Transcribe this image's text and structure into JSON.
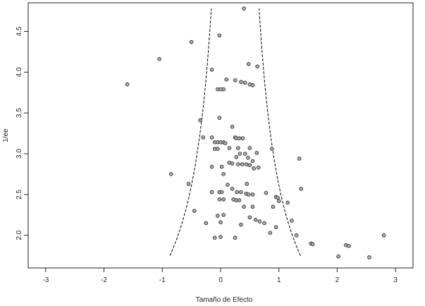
{
  "chart_data": {
    "type": "scatter",
    "xlabel": "Tamaño de Efecto",
    "ylabel": "1/ee",
    "xlim": [
      -3.3,
      3.3
    ],
    "ylim": [
      1.6,
      4.85
    ],
    "x_ticks": [
      "-3",
      "-2",
      "-1",
      "0",
      "1",
      "2",
      "3"
    ],
    "y_ticks": [
      "2.0",
      "2.5",
      "3.0",
      "3.5",
      "4.0",
      "4.5"
    ],
    "grid": false,
    "point_color": "#aaaaaa",
    "funnel_center": 0.25,
    "funnel_ymin": 1.75,
    "funnel_ymax": 4.78,
    "points": [
      [
        0.4,
        4.78
      ],
      [
        -0.02,
        4.45
      ],
      [
        -0.5,
        4.37
      ],
      [
        -1.05,
        4.16
      ],
      [
        -1.6,
        3.85
      ],
      [
        0.48,
        4.1
      ],
      [
        0.63,
        4.07
      ],
      [
        -0.15,
        4.03
      ],
      [
        0.1,
        3.91
      ],
      [
        0.25,
        3.9
      ],
      [
        0.35,
        3.88
      ],
      [
        0.42,
        3.87
      ],
      [
        0.5,
        3.85
      ],
      [
        0.55,
        3.84
      ],
      [
        -0.05,
        3.79
      ],
      [
        0.05,
        3.79
      ],
      [
        0.0,
        3.79
      ],
      [
        -0.02,
        3.44
      ],
      [
        -0.35,
        3.41
      ],
      [
        0.2,
        3.33
      ],
      [
        -0.3,
        3.2
      ],
      [
        -0.15,
        3.2
      ],
      [
        0.25,
        3.2
      ],
      [
        0.32,
        3.19
      ],
      [
        0.38,
        3.19
      ],
      [
        0.27,
        3.19
      ],
      [
        -0.1,
        3.14
      ],
      [
        -0.05,
        3.14
      ],
      [
        0.0,
        3.14
      ],
      [
        0.05,
        3.14
      ],
      [
        0.08,
        3.13
      ],
      [
        -0.1,
        3.06
      ],
      [
        -0.05,
        3.06
      ],
      [
        0.15,
        3.07
      ],
      [
        0.3,
        3.07
      ],
      [
        0.5,
        3.07
      ],
      [
        0.88,
        3.06
      ],
      [
        0.33,
        3.0
      ],
      [
        0.62,
        3.01
      ],
      [
        0.42,
        3.0
      ],
      [
        0.27,
        2.96
      ],
      [
        0.47,
        2.95
      ],
      [
        0.55,
        2.91
      ],
      [
        1.35,
        2.94
      ],
      [
        0.15,
        2.89
      ],
      [
        0.2,
        2.88
      ],
      [
        0.3,
        2.87
      ],
      [
        0.37,
        2.87
      ],
      [
        0.44,
        2.87
      ],
      [
        0.5,
        2.86
      ],
      [
        0.65,
        2.83
      ],
      [
        -0.15,
        2.84
      ],
      [
        0.02,
        2.84
      ],
      [
        0.57,
        2.82
      ],
      [
        0.05,
        2.75
      ],
      [
        -0.85,
        2.75
      ],
      [
        -0.55,
        2.63
      ],
      [
        0.12,
        2.62
      ],
      [
        0.45,
        2.63
      ],
      [
        0.2,
        2.57
      ],
      [
        1.38,
        2.57
      ],
      [
        -0.15,
        2.53
      ],
      [
        -0.02,
        2.53
      ],
      [
        0.02,
        2.53
      ],
      [
        0.28,
        2.53
      ],
      [
        0.35,
        2.53
      ],
      [
        0.44,
        2.51
      ],
      [
        0.48,
        2.5
      ],
      [
        0.55,
        2.5
      ],
      [
        0.78,
        2.52
      ],
      [
        0.95,
        2.47
      ],
      [
        -0.02,
        2.44
      ],
      [
        0.05,
        2.44
      ],
      [
        0.22,
        2.44
      ],
      [
        0.27,
        2.43
      ],
      [
        0.32,
        2.43
      ],
      [
        0.98,
        2.46
      ],
      [
        1.0,
        2.42
      ],
      [
        0.4,
        2.35
      ],
      [
        0.55,
        2.35
      ],
      [
        1.15,
        2.4
      ],
      [
        -0.45,
        2.3
      ],
      [
        0.05,
        2.25
      ],
      [
        -0.05,
        2.24
      ],
      [
        0.9,
        2.35
      ],
      [
        1.22,
        2.18
      ],
      [
        -0.25,
        2.15
      ],
      [
        0.35,
        2.13
      ],
      [
        0.6,
        2.19
      ],
      [
        0.67,
        2.17
      ],
      [
        0.5,
        2.22
      ],
      [
        0.75,
        2.15
      ],
      [
        0.95,
        2.1
      ],
      [
        0.0,
        2.16
      ],
      [
        -0.1,
        1.97
      ],
      [
        0.0,
        1.98
      ],
      [
        0.25,
        1.97
      ],
      [
        0.85,
        2.03
      ],
      [
        1.3,
        2.0
      ],
      [
        1.55,
        1.9
      ],
      [
        1.58,
        1.89
      ],
      [
        2.15,
        1.88
      ],
      [
        2.2,
        1.87
      ],
      [
        2.8,
        2.0
      ],
      [
        2.02,
        1.74
      ],
      [
        2.55,
        1.73
      ]
    ]
  }
}
